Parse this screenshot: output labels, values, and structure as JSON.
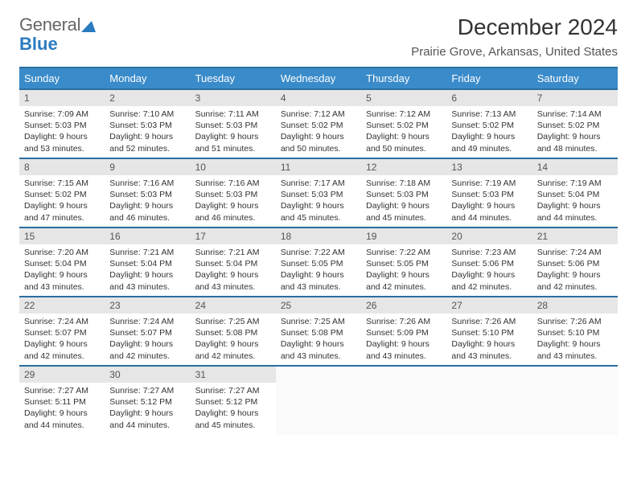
{
  "logo": {
    "part1": "General",
    "part2": "Blue"
  },
  "title": "December 2024",
  "subtitle": "Prairie Grove, Arkansas, United States",
  "colors": {
    "header_bg": "#3a8bc9",
    "header_border": "#2a6ea1",
    "daynum_bg": "#e6e6e6",
    "text": "#333333",
    "logo_blue": "#2b7bbf"
  },
  "weekdays": [
    "Sunday",
    "Monday",
    "Tuesday",
    "Wednesday",
    "Thursday",
    "Friday",
    "Saturday"
  ],
  "days": [
    {
      "n": "1",
      "sr": "7:09 AM",
      "ss": "5:03 PM",
      "dl": "9 hours and 53 minutes."
    },
    {
      "n": "2",
      "sr": "7:10 AM",
      "ss": "5:03 PM",
      "dl": "9 hours and 52 minutes."
    },
    {
      "n": "3",
      "sr": "7:11 AM",
      "ss": "5:03 PM",
      "dl": "9 hours and 51 minutes."
    },
    {
      "n": "4",
      "sr": "7:12 AM",
      "ss": "5:02 PM",
      "dl": "9 hours and 50 minutes."
    },
    {
      "n": "5",
      "sr": "7:12 AM",
      "ss": "5:02 PM",
      "dl": "9 hours and 50 minutes."
    },
    {
      "n": "6",
      "sr": "7:13 AM",
      "ss": "5:02 PM",
      "dl": "9 hours and 49 minutes."
    },
    {
      "n": "7",
      "sr": "7:14 AM",
      "ss": "5:02 PM",
      "dl": "9 hours and 48 minutes."
    },
    {
      "n": "8",
      "sr": "7:15 AM",
      "ss": "5:02 PM",
      "dl": "9 hours and 47 minutes."
    },
    {
      "n": "9",
      "sr": "7:16 AM",
      "ss": "5:03 PM",
      "dl": "9 hours and 46 minutes."
    },
    {
      "n": "10",
      "sr": "7:16 AM",
      "ss": "5:03 PM",
      "dl": "9 hours and 46 minutes."
    },
    {
      "n": "11",
      "sr": "7:17 AM",
      "ss": "5:03 PM",
      "dl": "9 hours and 45 minutes."
    },
    {
      "n": "12",
      "sr": "7:18 AM",
      "ss": "5:03 PM",
      "dl": "9 hours and 45 minutes."
    },
    {
      "n": "13",
      "sr": "7:19 AM",
      "ss": "5:03 PM",
      "dl": "9 hours and 44 minutes."
    },
    {
      "n": "14",
      "sr": "7:19 AM",
      "ss": "5:04 PM",
      "dl": "9 hours and 44 minutes."
    },
    {
      "n": "15",
      "sr": "7:20 AM",
      "ss": "5:04 PM",
      "dl": "9 hours and 43 minutes."
    },
    {
      "n": "16",
      "sr": "7:21 AM",
      "ss": "5:04 PM",
      "dl": "9 hours and 43 minutes."
    },
    {
      "n": "17",
      "sr": "7:21 AM",
      "ss": "5:04 PM",
      "dl": "9 hours and 43 minutes."
    },
    {
      "n": "18",
      "sr": "7:22 AM",
      "ss": "5:05 PM",
      "dl": "9 hours and 43 minutes."
    },
    {
      "n": "19",
      "sr": "7:22 AM",
      "ss": "5:05 PM",
      "dl": "9 hours and 42 minutes."
    },
    {
      "n": "20",
      "sr": "7:23 AM",
      "ss": "5:06 PM",
      "dl": "9 hours and 42 minutes."
    },
    {
      "n": "21",
      "sr": "7:24 AM",
      "ss": "5:06 PM",
      "dl": "9 hours and 42 minutes."
    },
    {
      "n": "22",
      "sr": "7:24 AM",
      "ss": "5:07 PM",
      "dl": "9 hours and 42 minutes."
    },
    {
      "n": "23",
      "sr": "7:24 AM",
      "ss": "5:07 PM",
      "dl": "9 hours and 42 minutes."
    },
    {
      "n": "24",
      "sr": "7:25 AM",
      "ss": "5:08 PM",
      "dl": "9 hours and 42 minutes."
    },
    {
      "n": "25",
      "sr": "7:25 AM",
      "ss": "5:08 PM",
      "dl": "9 hours and 43 minutes."
    },
    {
      "n": "26",
      "sr": "7:26 AM",
      "ss": "5:09 PM",
      "dl": "9 hours and 43 minutes."
    },
    {
      "n": "27",
      "sr": "7:26 AM",
      "ss": "5:10 PM",
      "dl": "9 hours and 43 minutes."
    },
    {
      "n": "28",
      "sr": "7:26 AM",
      "ss": "5:10 PM",
      "dl": "9 hours and 43 minutes."
    },
    {
      "n": "29",
      "sr": "7:27 AM",
      "ss": "5:11 PM",
      "dl": "9 hours and 44 minutes."
    },
    {
      "n": "30",
      "sr": "7:27 AM",
      "ss": "5:12 PM",
      "dl": "9 hours and 44 minutes."
    },
    {
      "n": "31",
      "sr": "7:27 AM",
      "ss": "5:12 PM",
      "dl": "9 hours and 45 minutes."
    }
  ],
  "labels": {
    "sunrise": "Sunrise: ",
    "sunset": "Sunset: ",
    "daylight": "Daylight: "
  }
}
